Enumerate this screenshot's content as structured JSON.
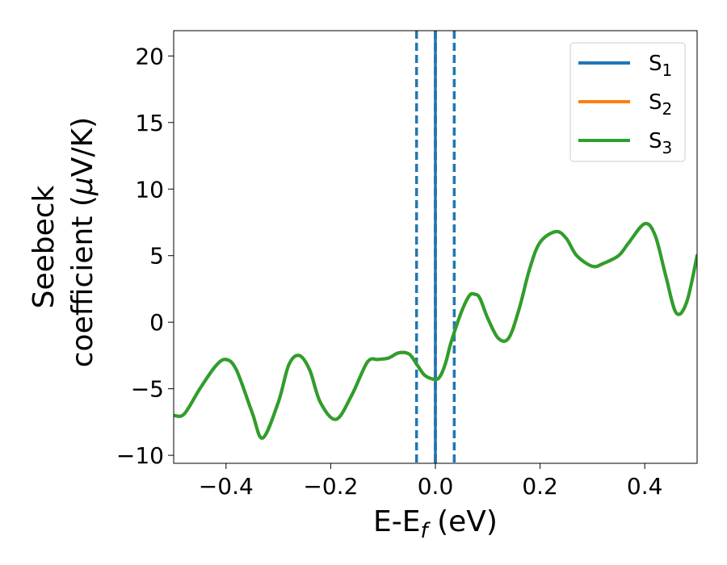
{
  "chart_data": {
    "type": "line",
    "xlabel": "E-E",
    "xlabel_sub": "f",
    "xlabel_unit": " (eV)",
    "ylabel_line1": "Seebeck",
    "ylabel_line2": "coefficient  (",
    "ylabel_mu": "μ",
    "ylabel_unit": "V/K)",
    "xlim": [
      -0.5,
      0.5
    ],
    "ylim": [
      -10.6,
      21.9
    ],
    "xticks": [
      -0.4,
      -0.2,
      0.0,
      0.2,
      0.4
    ],
    "xtick_labels": [
      "−0.4",
      "−0.2",
      "0.0",
      "0.2",
      "0.4"
    ],
    "yticks": [
      -10,
      -5,
      0,
      5,
      10,
      15,
      20
    ],
    "ytick_labels": [
      "−10",
      "−5",
      "0",
      "5",
      "10",
      "15",
      "20"
    ],
    "grid": false,
    "legend_position": "top-right",
    "vertical_lines": [
      {
        "x": -0.036,
        "style": "dashed",
        "color": "#1f77b4"
      },
      {
        "x": 0.0,
        "style": "dashed",
        "color": "#000000"
      },
      {
        "x": 0.0,
        "style": "solid",
        "color": "#1f77b4"
      },
      {
        "x": 0.036,
        "style": "dashed",
        "color": "#1f77b4"
      }
    ],
    "series": [
      {
        "name": "S",
        "sub": "1",
        "color": "#1f77b4",
        "x": [
          -0.5,
          -0.48,
          -0.45,
          -0.42,
          -0.4,
          -0.38,
          -0.35,
          -0.33,
          -0.3,
          -0.28,
          -0.26,
          -0.24,
          -0.22,
          -0.19,
          -0.16,
          -0.13,
          -0.11,
          -0.09,
          -0.07,
          -0.05,
          -0.035,
          -0.02,
          0.0,
          0.01,
          0.02,
          0.03,
          0.05,
          0.065,
          0.075,
          0.085,
          0.1,
          0.12,
          0.14,
          0.16,
          0.18,
          0.2,
          0.23,
          0.25,
          0.27,
          0.3,
          0.32,
          0.35,
          0.37,
          0.4,
          0.42,
          0.44,
          0.46,
          0.48,
          0.5
        ],
        "y": [
          -7.0,
          -6.9,
          -5.0,
          -3.3,
          -2.8,
          -3.6,
          -6.8,
          -8.7,
          -6.0,
          -3.2,
          -2.5,
          -3.6,
          -6.0,
          -7.3,
          -5.5,
          -3.0,
          -2.8,
          -2.7,
          -2.3,
          -2.4,
          -3.2,
          -4.0,
          -4.3,
          -4.0,
          -3.0,
          -1.5,
          0.8,
          2.0,
          2.1,
          1.8,
          0.3,
          -1.2,
          -1.2,
          1.0,
          4.0,
          6.0,
          6.8,
          6.3,
          5.0,
          4.2,
          4.4,
          5.0,
          6.0,
          7.4,
          6.5,
          3.5,
          0.7,
          1.5,
          5.0
        ]
      },
      {
        "name": "S",
        "sub": "2",
        "color": "#ff7f0e",
        "x": [
          -0.5,
          -0.48,
          -0.45,
          -0.42,
          -0.4,
          -0.38,
          -0.35,
          -0.33,
          -0.3,
          -0.28,
          -0.26,
          -0.24,
          -0.22,
          -0.19,
          -0.16,
          -0.13,
          -0.11,
          -0.09,
          -0.07,
          -0.05,
          -0.035,
          -0.02,
          0.0,
          0.01,
          0.02,
          0.03,
          0.05,
          0.065,
          0.075,
          0.085,
          0.1,
          0.12,
          0.14,
          0.16,
          0.18,
          0.2,
          0.23,
          0.25,
          0.27,
          0.3,
          0.32,
          0.35,
          0.37,
          0.4,
          0.42,
          0.44,
          0.46,
          0.48,
          0.5
        ],
        "y": [
          -7.0,
          -6.9,
          -5.0,
          -3.3,
          -2.8,
          -3.6,
          -6.8,
          -8.7,
          -6.0,
          -3.2,
          -2.5,
          -3.6,
          -6.0,
          -7.3,
          -5.5,
          -3.0,
          -2.8,
          -2.7,
          -2.3,
          -2.4,
          -3.2,
          -4.0,
          -4.3,
          -4.0,
          -3.0,
          -1.5,
          0.8,
          2.0,
          2.1,
          1.8,
          0.3,
          -1.2,
          -1.2,
          1.0,
          4.0,
          6.0,
          6.8,
          6.3,
          5.0,
          4.2,
          4.4,
          5.0,
          6.0,
          7.4,
          6.5,
          3.5,
          0.7,
          1.5,
          5.0
        ]
      },
      {
        "name": "S",
        "sub": "3",
        "color": "#2ca02c",
        "x": [
          -0.5,
          -0.48,
          -0.45,
          -0.42,
          -0.4,
          -0.38,
          -0.35,
          -0.33,
          -0.3,
          -0.28,
          -0.26,
          -0.24,
          -0.22,
          -0.19,
          -0.16,
          -0.13,
          -0.11,
          -0.09,
          -0.07,
          -0.05,
          -0.035,
          -0.02,
          0.0,
          0.01,
          0.02,
          0.03,
          0.05,
          0.065,
          0.075,
          0.085,
          0.1,
          0.12,
          0.14,
          0.16,
          0.18,
          0.2,
          0.23,
          0.25,
          0.27,
          0.3,
          0.32,
          0.35,
          0.37,
          0.4,
          0.42,
          0.44,
          0.46,
          0.48,
          0.5
        ],
        "y": [
          -7.0,
          -6.9,
          -5.0,
          -3.3,
          -2.8,
          -3.6,
          -6.8,
          -8.7,
          -6.0,
          -3.2,
          -2.5,
          -3.6,
          -6.0,
          -7.3,
          -5.5,
          -3.0,
          -2.8,
          -2.7,
          -2.3,
          -2.4,
          -3.2,
          -4.0,
          -4.3,
          -4.0,
          -3.0,
          -1.5,
          0.8,
          2.0,
          2.1,
          1.8,
          0.3,
          -1.2,
          -1.2,
          1.0,
          4.0,
          6.0,
          6.8,
          6.3,
          5.0,
          4.2,
          4.4,
          5.0,
          6.0,
          7.4,
          6.5,
          3.5,
          0.7,
          1.5,
          5.0
        ]
      }
    ]
  }
}
